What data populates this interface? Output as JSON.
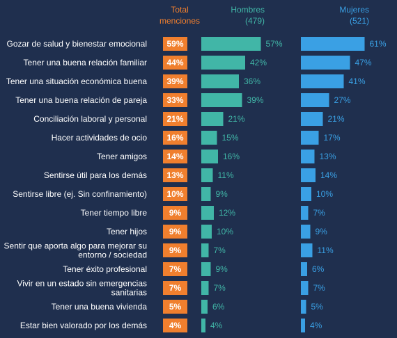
{
  "chart_data": {
    "type": "bar",
    "headers": {
      "total": [
        "Total",
        "menciones"
      ],
      "men": [
        "Hombres",
        "(479)"
      ],
      "women": [
        "Mujeres",
        "(521)"
      ]
    },
    "categories": [
      [
        "Gozar de salud y bienestar emocional"
      ],
      [
        "Tener una buena relación familiar"
      ],
      [
        "Tener una situación económica buena"
      ],
      [
        "Tener una buena relación de pareja"
      ],
      [
        "Conciliación laboral y personal"
      ],
      [
        "Hacer actividades de ocio"
      ],
      [
        "Tener amigos"
      ],
      [
        "Sentirse útil para los demás"
      ],
      [
        "Sentirse libre (ej. Sin confinamiento)"
      ],
      [
        "Tener tiempo libre"
      ],
      [
        "Tener hijos"
      ],
      [
        "Sentir que aporta algo para mejorar su",
        "entorno / sociedad"
      ],
      [
        "Tener éxito profesional"
      ],
      [
        "Vivir en un estado sin emergencias",
        "sanitarias"
      ],
      [
        "Tener una buena vivienda"
      ],
      [
        "Estar bien valorado por los demás"
      ]
    ],
    "series": [
      {
        "name": "Total menciones",
        "values": [
          59,
          44,
          39,
          33,
          21,
          16,
          14,
          13,
          10,
          9,
          9,
          9,
          7,
          7,
          5,
          4
        ]
      },
      {
        "name": "Hombres (479)",
        "values": [
          57,
          42,
          36,
          39,
          21,
          15,
          16,
          11,
          9,
          12,
          10,
          7,
          9,
          7,
          6,
          4
        ]
      },
      {
        "name": "Mujeres (521)",
        "values": [
          61,
          47,
          41,
          27,
          21,
          17,
          13,
          14,
          10,
          7,
          9,
          11,
          6,
          7,
          5,
          4
        ]
      }
    ],
    "value_suffix": "%",
    "colors": {
      "background": "#1f2f4e",
      "total": "#f07f2e",
      "men": "#41b6a7",
      "women": "#3aa0e4",
      "label": "#ffffff"
    }
  }
}
